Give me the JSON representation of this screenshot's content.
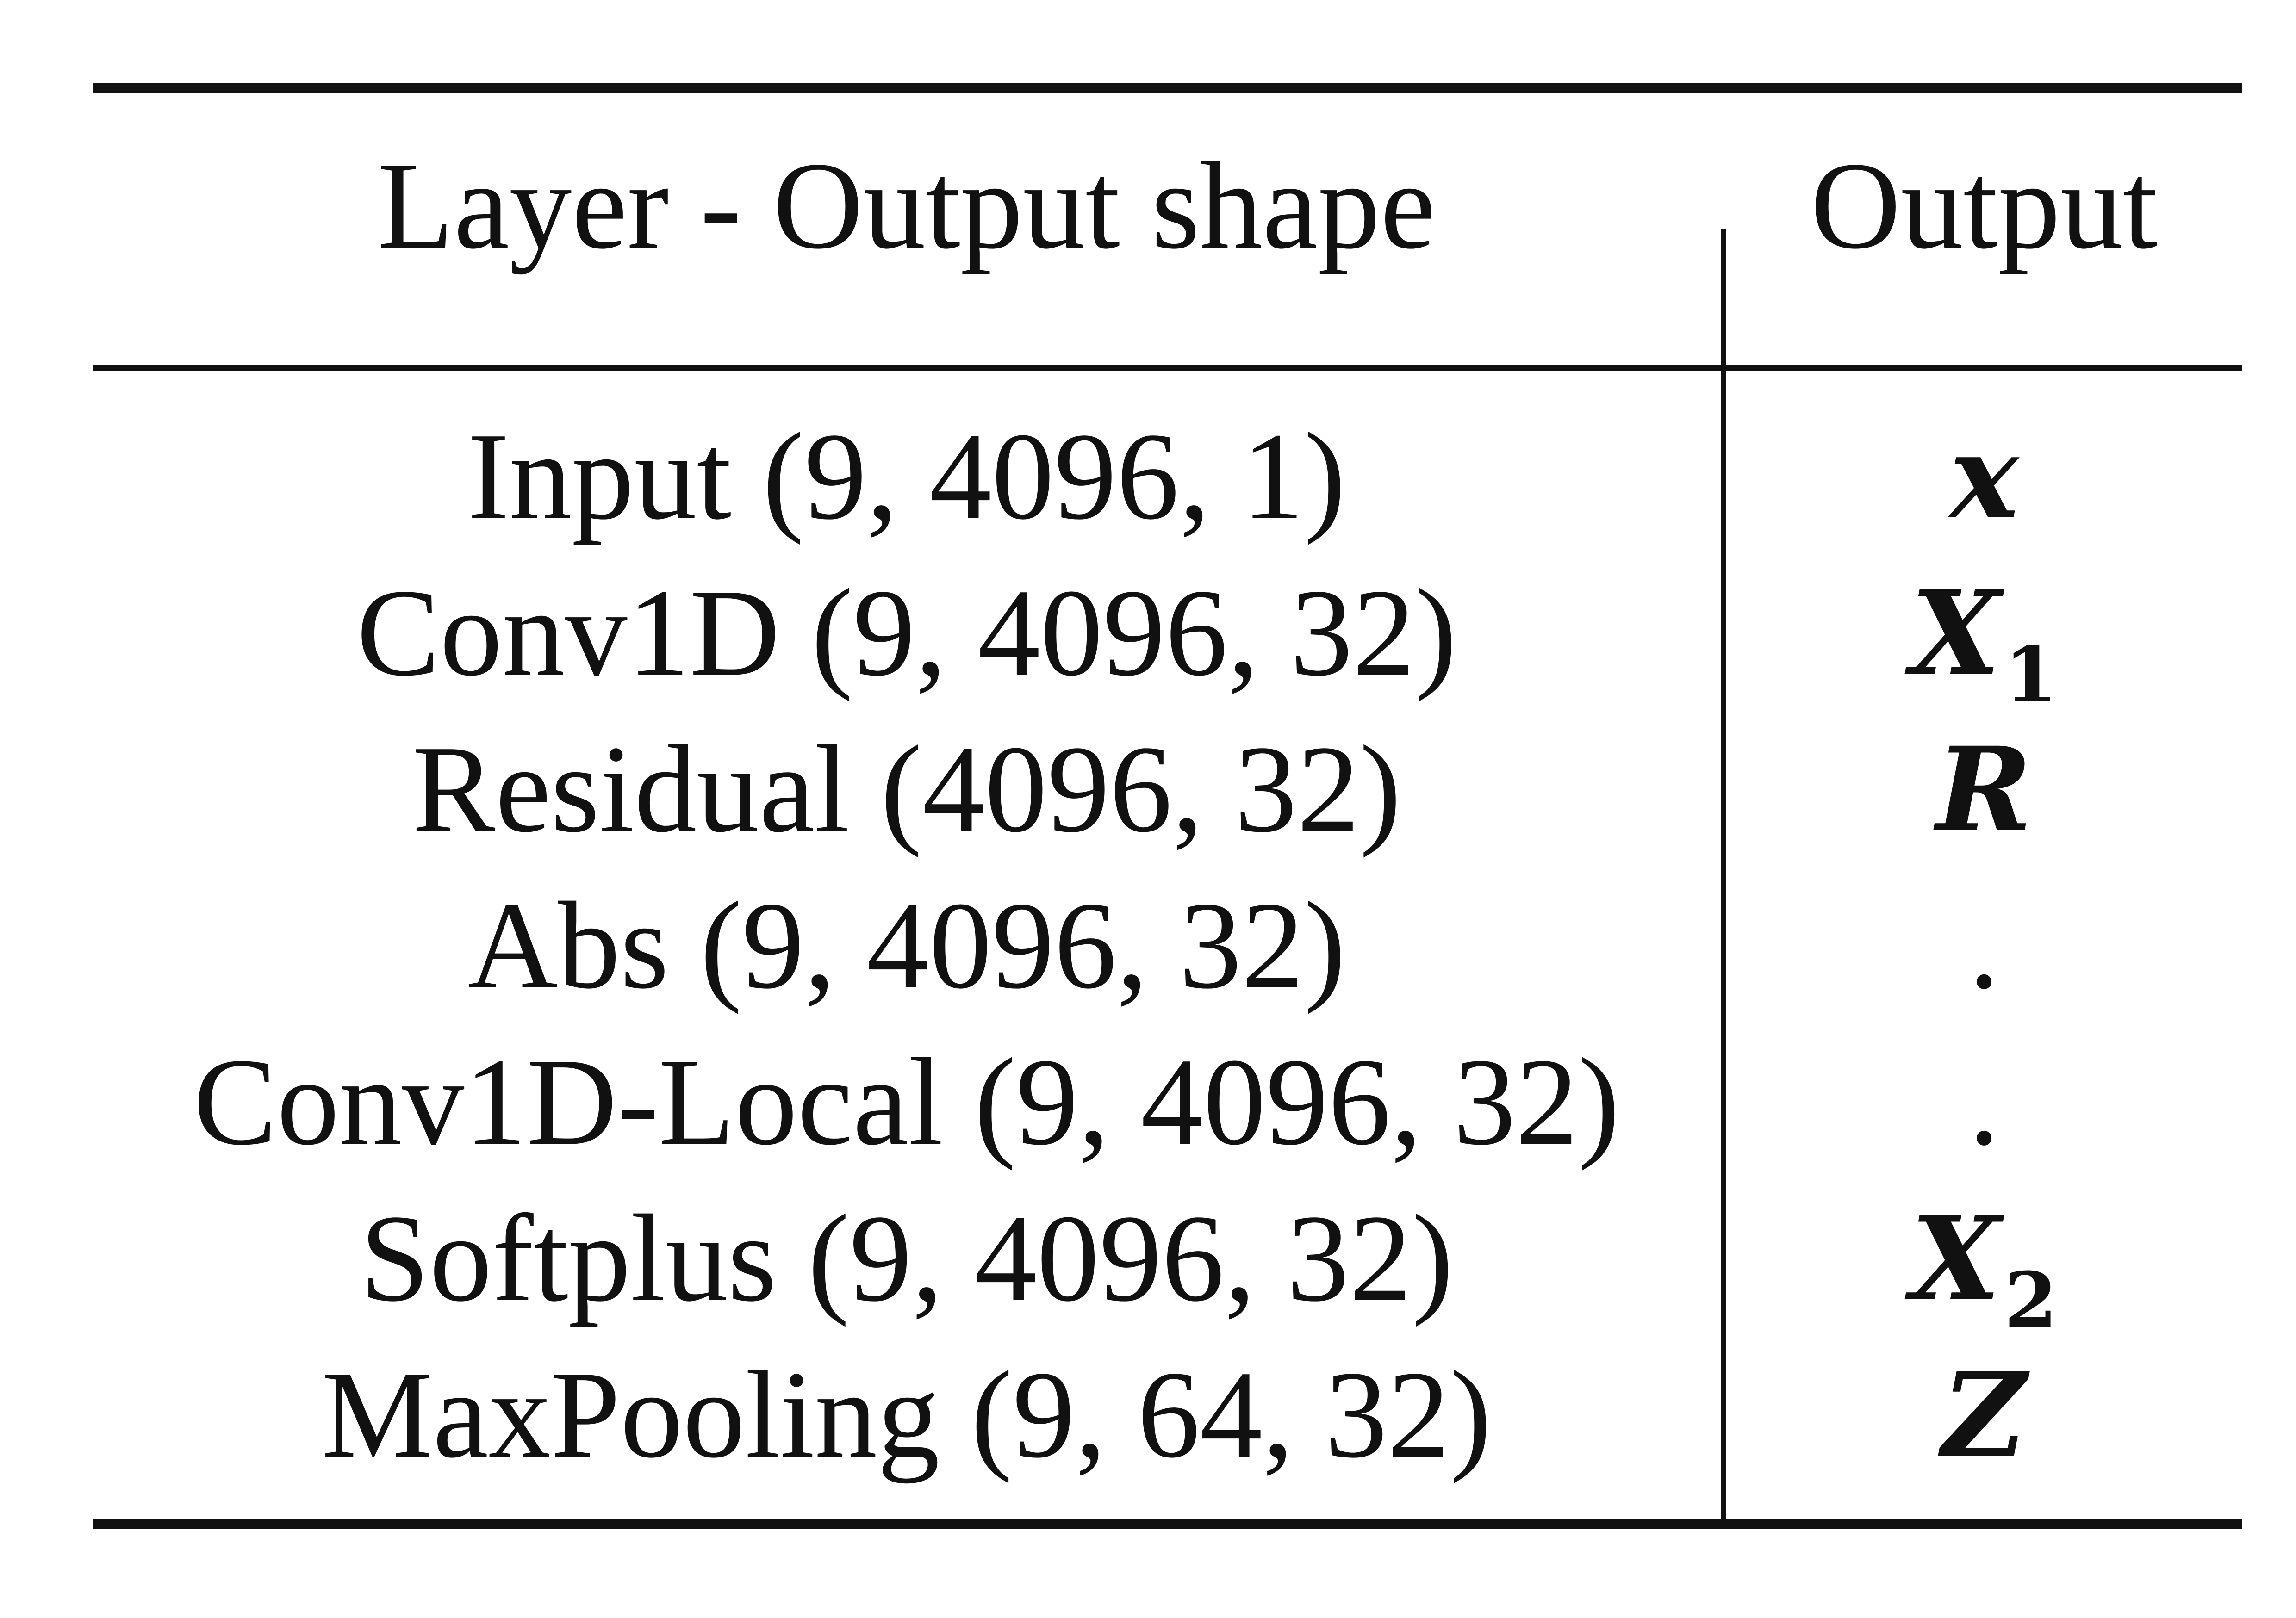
{
  "table": {
    "headers": {
      "layer": "Layer - Output shape",
      "output": "Output"
    },
    "rows": [
      {
        "layer": "Input (9, 4096, 1)",
        "output": "x",
        "output_sub": ""
      },
      {
        "layer": "Conv1D (9, 4096, 32)",
        "output": "X",
        "output_sub": "1"
      },
      {
        "layer": "Residual (4096, 32)",
        "output": "R",
        "output_sub": ""
      },
      {
        "layer": "Abs (9, 4096, 32)",
        "output": ".",
        "output_sub": ""
      },
      {
        "layer": "Conv1D-Local (9, 4096, 32)",
        "output": ".",
        "output_sub": ""
      },
      {
        "layer": "Softplus (9, 4096, 32)",
        "output": "X",
        "output_sub": "2"
      },
      {
        "layer": "MaxPooling (9, 64, 32)",
        "output": "Z",
        "output_sub": ""
      }
    ]
  }
}
